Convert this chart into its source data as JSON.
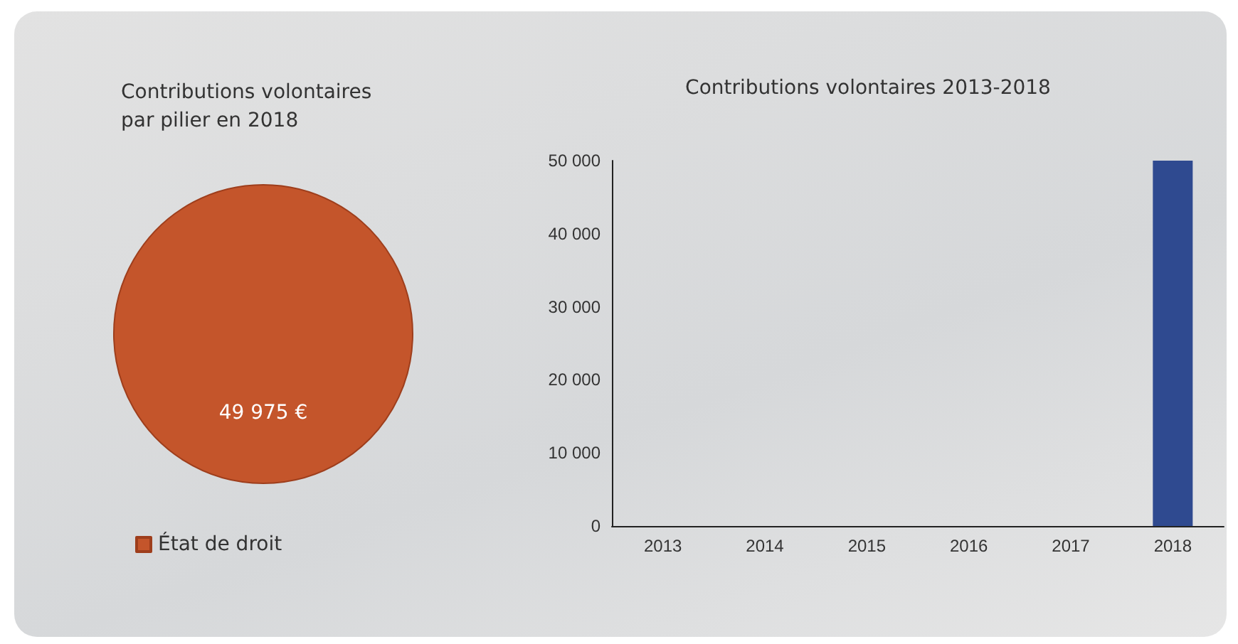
{
  "chart_data": [
    {
      "type": "pie",
      "title": "Contributions volontaires\npar pilier en 2018",
      "categories": [
        "État de droit"
      ],
      "values": [
        49975
      ],
      "colors": [
        "#c4552b"
      ],
      "value_labels": [
        "49 975 €"
      ],
      "legend": "bottom left"
    },
    {
      "type": "bar",
      "title": "Contributions volontaires 2013-2018",
      "categories": [
        "2013",
        "2014",
        "2015",
        "2016",
        "2017",
        "2018"
      ],
      "values": [
        0,
        0,
        0,
        0,
        0,
        50000
      ],
      "color": "#2f4a90",
      "ylim": [
        0,
        50000
      ],
      "yticks": [
        0,
        {
          "value": 10000,
          "label": "10 000"
        },
        {
          "value": 20000,
          "label": "20 000"
        },
        {
          "value": 30000,
          "label": "30 000"
        },
        {
          "value": 40000,
          "label": "40 000"
        },
        {
          "value": 50000,
          "label": "50 000"
        }
      ],
      "grid": false,
      "legend": false
    }
  ]
}
